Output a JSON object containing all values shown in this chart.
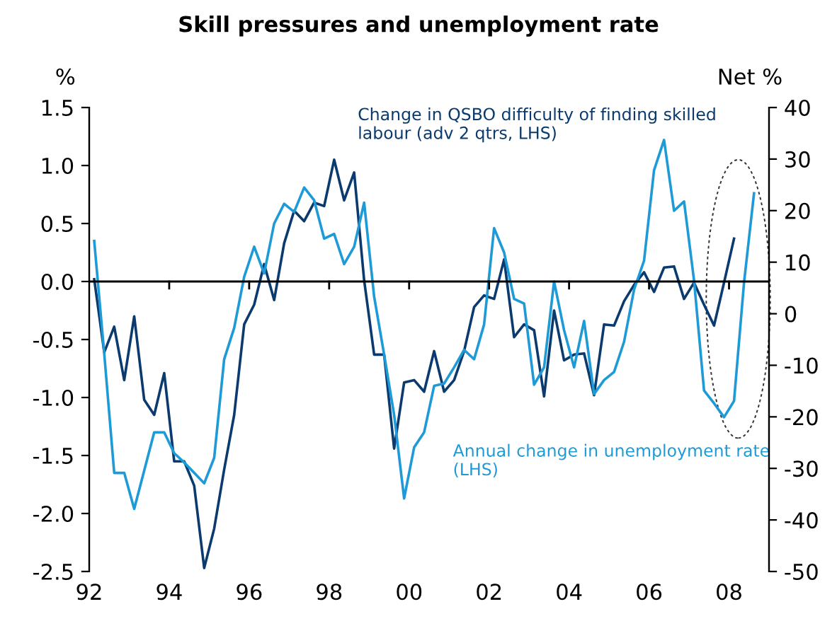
{
  "chart_data": {
    "type": "line",
    "title": "Skill pressures and unemployment rate",
    "ylabel": "%",
    "y2label": "Net %",
    "x": [
      1992.125,
      1992.375,
      1992.625,
      1992.875,
      1993.125,
      1993.375,
      1993.625,
      1993.875,
      1994.125,
      1994.375,
      1994.625,
      1994.875,
      1995.125,
      1995.375,
      1995.625,
      1995.875,
      1996.125,
      1996.375,
      1996.625,
      1996.875,
      1997.125,
      1997.375,
      1997.625,
      1997.875,
      1998.125,
      1998.375,
      1998.625,
      1998.875,
      1999.125,
      1999.375,
      1999.625,
      1999.875,
      2000.125,
      2000.375,
      2000.625,
      2000.875,
      2001.125,
      2001.375,
      2001.625,
      2001.875,
      2002.125,
      2002.375,
      2002.625,
      2002.875,
      2003.125,
      2003.375,
      2003.625,
      2003.875,
      2004.125,
      2004.375,
      2004.625,
      2004.875,
      2005.125,
      2005.375,
      2005.625,
      2005.875,
      2006.125,
      2006.375,
      2006.625,
      2006.875,
      2007.125,
      2007.375,
      2007.625,
      2007.875,
      2008.125,
      2008.375,
      2008.625
    ],
    "series": [
      {
        "name": "Change in QSBO difficulty of finding skilled labour (adv 2 qtrs, LHS)",
        "color": "#0b3a6e",
        "values": [
          0.02,
          -0.61,
          -0.39,
          -0.85,
          -0.3,
          -1.02,
          -1.15,
          -0.79,
          -1.55,
          -1.55,
          -1.76,
          -2.47,
          -2.13,
          -1.62,
          -1.15,
          -0.37,
          -0.2,
          0.15,
          -0.16,
          0.33,
          0.61,
          0.52,
          0.68,
          0.65,
          1.05,
          0.7,
          0.94,
          0.01,
          -0.63,
          -0.63,
          -1.44,
          -0.87,
          -0.85,
          -0.95,
          -0.6,
          -0.95,
          -0.85,
          -0.6,
          -0.22,
          -0.12,
          -0.15,
          0.19,
          -0.48,
          -0.37,
          -0.42,
          -0.99,
          -0.25,
          -0.68,
          -0.63,
          -0.62,
          -0.98,
          -0.37,
          -0.38,
          -0.17,
          -0.03,
          0.08,
          -0.09,
          0.12,
          0.13,
          -0.15,
          -0.01,
          -0.2,
          -0.38,
          -0.01,
          0.37,
          null,
          null
        ]
      },
      {
        "name": "Annual change in unemployment rate (LHS)",
        "color": "#1e9ad6",
        "values": [
          0.35,
          -0.62,
          -1.65,
          -1.65,
          -1.96,
          -1.63,
          -1.3,
          -1.3,
          -1.48,
          -1.56,
          -1.65,
          -1.74,
          -1.52,
          -0.67,
          -0.4,
          0.04,
          0.3,
          0.07,
          0.5,
          0.67,
          0.6,
          0.81,
          0.7,
          0.37,
          0.41,
          0.15,
          0.3,
          0.68,
          -0.13,
          -0.63,
          -1.15,
          -1.87,
          -1.43,
          -1.3,
          -0.9,
          -0.88,
          -0.74,
          -0.59,
          -0.67,
          -0.37,
          0.46,
          0.25,
          -0.15,
          -0.19,
          -0.89,
          -0.74,
          0.0,
          -0.42,
          -0.74,
          -0.34,
          -0.97,
          -0.85,
          -0.78,
          -0.52,
          -0.07,
          0.18,
          0.96,
          1.22,
          0.61,
          0.69,
          0.01,
          -0.94,
          -1.05,
          -1.17,
          -1.03,
          -0.01,
          0.76
        ]
      }
    ],
    "xlim": [
      1992,
      2009
    ],
    "xticks": [
      {
        "value": 1992,
        "label": "92"
      },
      {
        "value": 1994,
        "label": "94"
      },
      {
        "value": 1996,
        "label": "96"
      },
      {
        "value": 1998,
        "label": "98"
      },
      {
        "value": 2000,
        "label": "00"
      },
      {
        "value": 2002,
        "label": "02"
      },
      {
        "value": 2004,
        "label": "04"
      },
      {
        "value": 2006,
        "label": "06"
      },
      {
        "value": 2008,
        "label": "08"
      }
    ],
    "ylim": [
      -2.5,
      1.5
    ],
    "yticks": [
      {
        "value": -2.5,
        "label": "-2.5"
      },
      {
        "value": -2.0,
        "label": "-2.0"
      },
      {
        "value": -1.5,
        "label": "-1.5"
      },
      {
        "value": -1.0,
        "label": "-1.0"
      },
      {
        "value": -0.5,
        "label": "-0.5"
      },
      {
        "value": 0,
        "label": "0.0"
      },
      {
        "value": 0.5,
        "label": "0.5"
      },
      {
        "value": 1.0,
        "label": "1.0"
      },
      {
        "value": 1.5,
        "label": "1.5"
      }
    ],
    "y2lim": [
      -50,
      40
    ],
    "y2ticks": [
      -50,
      -40,
      -30,
      -20,
      -10,
      0,
      10,
      20,
      30,
      40
    ],
    "ref_lines": [
      {
        "axis": "y",
        "value": 0,
        "color": "#000000"
      }
    ],
    "grid": false,
    "legend": false,
    "marker": "none",
    "line_style": "solid"
  }
}
